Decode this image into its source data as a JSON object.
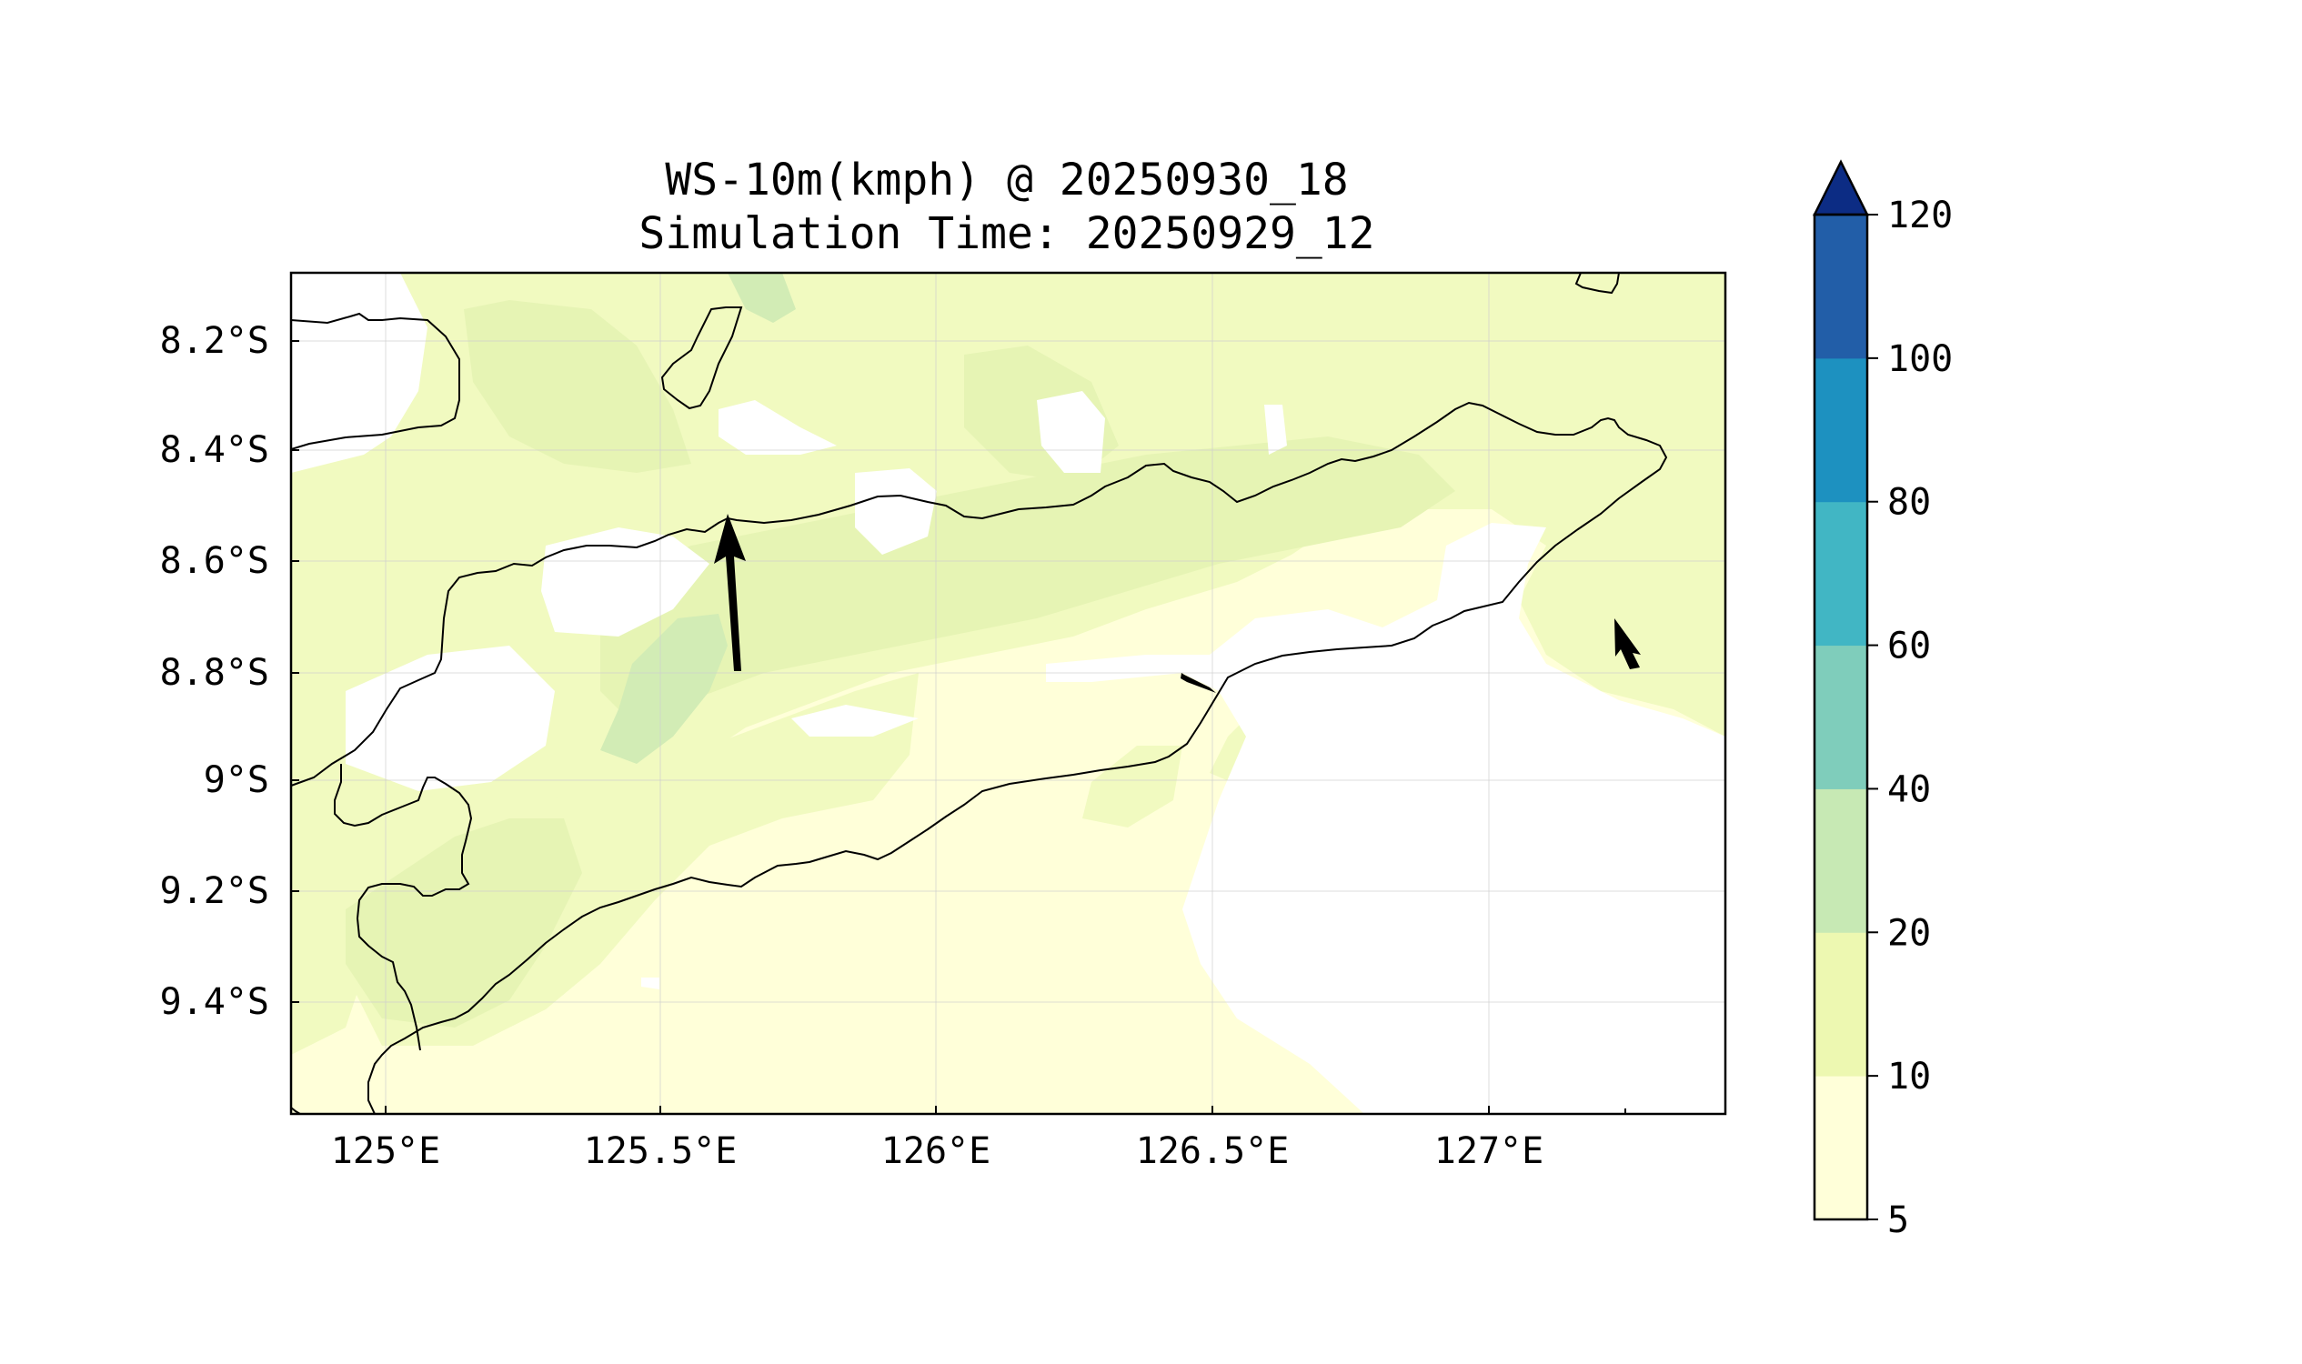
{
  "title": {
    "line1": "WS-10m(kmph) @ 20250930_18",
    "line2": "Simulation Time: 20250929_12"
  },
  "map": {
    "x_ticks": [
      {
        "value": 125.0,
        "label": "125°E"
      },
      {
        "value": 125.5,
        "label": "125.5°E"
      },
      {
        "value": 126.0,
        "label": "126°E"
      },
      {
        "value": 126.5,
        "label": "126.5°E"
      },
      {
        "value": 127.0,
        "label": "127°E"
      }
    ],
    "y_ticks": [
      {
        "value": -8.2,
        "label": "8.2°S"
      },
      {
        "value": -8.4,
        "label": "8.4°S"
      },
      {
        "value": -8.6,
        "label": "8.6°S"
      },
      {
        "value": -8.8,
        "label": "8.8°S"
      },
      {
        "value": -9.0,
        "label": "9°S"
      },
      {
        "value": -9.2,
        "label": "9.2°S"
      },
      {
        "value": -9.4,
        "label": "9.4°S"
      }
    ],
    "wind_vectors": [
      {
        "lon": 125.63,
        "lat": -8.8,
        "dir_deg": 358,
        "relative_length": 1.0
      },
      {
        "lon": 126.5,
        "lat": -8.83,
        "dir_deg": 300,
        "relative_length": 0.25
      },
      {
        "lon": 127.27,
        "lat": -8.8,
        "dir_deg": 330,
        "relative_length": 0.3
      }
    ]
  },
  "colorbar": {
    "levels": [
      "5",
      "10",
      "20",
      "40",
      "60",
      "80",
      "100",
      "120"
    ],
    "colors": [
      "#ffffd9",
      "#edf8b1",
      "#c7e9b4",
      "#7fcdbb",
      "#41b6c4",
      "#1d91c0",
      "#225ea8",
      "#0c2c84"
    ],
    "extend": "max"
  }
}
